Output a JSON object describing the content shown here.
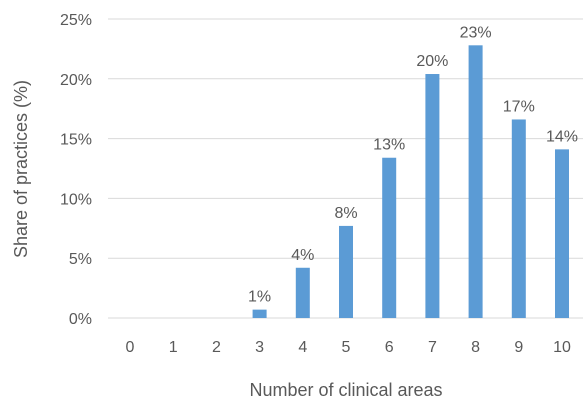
{
  "chart_data": {
    "type": "bar",
    "title": "",
    "xlabel": "Number of clinical areas",
    "ylabel": "Share of practices (%)",
    "categories": [
      "0",
      "1",
      "2",
      "3",
      "4",
      "5",
      "6",
      "7",
      "8",
      "9",
      "10"
    ],
    "values": [
      0,
      0,
      0,
      0.7,
      4.2,
      7.7,
      13.4,
      20.4,
      22.8,
      16.6,
      14.1
    ],
    "data_labels": [
      "",
      "",
      "",
      "1%",
      "4%",
      "8%",
      "13%",
      "20%",
      "23%",
      "17%",
      "14%"
    ],
    "ylim": [
      0,
      25
    ],
    "yticks": [
      0,
      5,
      10,
      15,
      20,
      25
    ],
    "ytick_labels": [
      "0%",
      "5%",
      "10%",
      "15%",
      "20%",
      "25%"
    ],
    "grid": true,
    "legend": "none",
    "bar_color": "#5b9bd5"
  }
}
